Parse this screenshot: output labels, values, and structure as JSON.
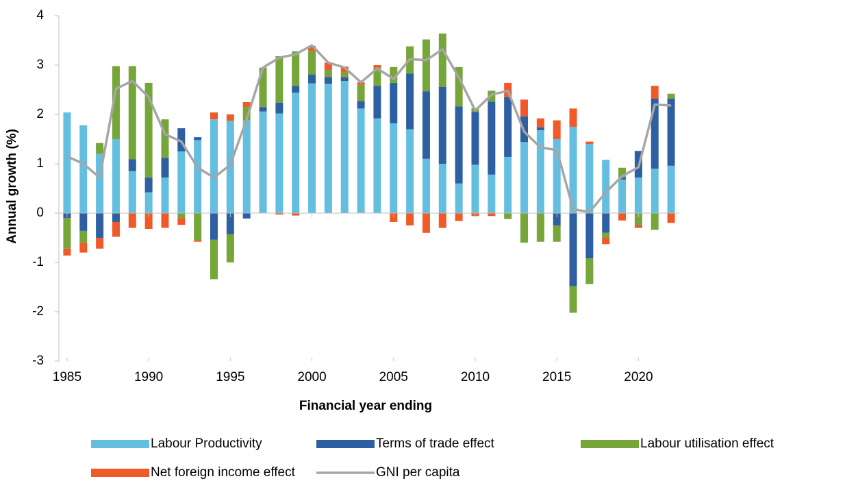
{
  "chart_data": {
    "type": "bar",
    "x_label": "Financial year ending",
    "y_label": "Annual growth (%)",
    "x": [
      1985,
      1986,
      1987,
      1988,
      1989,
      1990,
      1991,
      1992,
      1993,
      1994,
      1995,
      1996,
      1997,
      1998,
      1999,
      2000,
      2001,
      2002,
      2003,
      2004,
      2005,
      2006,
      2007,
      2008,
      2009,
      2010,
      2011,
      2012,
      2013,
      2014,
      2015,
      2016,
      2017,
      2018,
      2019,
      2020,
      2021,
      2022
    ],
    "xlim": [
      1984.5,
      2022.5
    ],
    "xticks": [
      1985,
      1990,
      1995,
      2000,
      2005,
      2010,
      2015,
      2020
    ],
    "ylim": [
      -3,
      4
    ],
    "yticks": [
      -3,
      -2,
      -1,
      0,
      1,
      2,
      3,
      4
    ],
    "series": [
      {
        "name": "Labour Productivity",
        "type": "bar",
        "color": "#63bee0",
        "values": [
          2.04,
          1.78,
          1.2,
          1.5,
          0.85,
          0.42,
          0.72,
          1.25,
          1.48,
          1.9,
          1.87,
          1.88,
          2.06,
          2.02,
          2.44,
          2.63,
          2.62,
          2.68,
          2.12,
          1.92,
          1.82,
          1.7,
          1.1,
          1.0,
          0.6,
          0.98,
          0.78,
          1.14,
          1.44,
          1.68,
          1.5,
          1.75,
          1.4,
          1.08,
          0.68,
          0.72,
          0.9,
          0.96
        ]
      },
      {
        "name": "Terms of trade effect",
        "type": "bar",
        "color": "#2d5fa2",
        "values": [
          -0.1,
          -0.36,
          -0.5,
          -0.18,
          0.24,
          0.3,
          0.4,
          0.47,
          0.06,
          -0.54,
          -0.43,
          -0.11,
          0.09,
          0.22,
          0.14,
          0.18,
          0.14,
          0.07,
          0.15,
          0.66,
          0.82,
          1.13,
          1.37,
          1.56,
          1.56,
          1.07,
          1.48,
          1.21,
          0.52,
          0.06,
          -0.25,
          -1.48,
          -0.92,
          -0.4,
          0.04,
          0.54,
          1.42,
          1.36
        ]
      },
      {
        "name": "Labour utilisation effect",
        "type": "bar",
        "color": "#76a53a",
        "values": [
          -0.62,
          -0.24,
          0.22,
          1.48,
          1.89,
          1.92,
          0.78,
          -0.1,
          -0.55,
          -0.8,
          -0.57,
          0.27,
          0.8,
          0.94,
          0.7,
          0.48,
          0.14,
          0.1,
          0.33,
          0.37,
          0.32,
          0.55,
          1.05,
          1.08,
          0.8,
          0.08,
          0.22,
          -0.12,
          -0.6,
          -0.58,
          -0.33,
          -0.54,
          -0.52,
          -0.1,
          0.2,
          -0.25,
          -0.34,
          0.1
        ]
      },
      {
        "name": "Net foreign income effect",
        "type": "bar",
        "color": "#f05a28",
        "values": [
          -0.14,
          -0.2,
          -0.22,
          -0.3,
          -0.3,
          -0.32,
          -0.3,
          -0.14,
          -0.03,
          0.14,
          0.13,
          0.1,
          0,
          -0.03,
          -0.05,
          0.1,
          0.15,
          0.12,
          0.05,
          0.05,
          -0.18,
          -0.25,
          -0.4,
          -0.3,
          -0.16,
          -0.06,
          -0.06,
          0.29,
          0.34,
          0.18,
          0.38,
          0.37,
          0.05,
          -0.13,
          -0.15,
          -0.05,
          0.26,
          -0.2
        ]
      },
      {
        "name": "GNI per capita",
        "type": "line",
        "color": "#a6a6a6",
        "values": [
          1.15,
          1.0,
          0.72,
          2.52,
          2.68,
          2.35,
          1.6,
          1.45,
          0.92,
          0.72,
          0.98,
          1.9,
          2.95,
          3.15,
          3.22,
          3.4,
          3.05,
          2.95,
          2.65,
          2.93,
          2.72,
          3.12,
          3.1,
          3.32,
          2.75,
          2.08,
          2.4,
          2.48,
          1.65,
          1.33,
          1.28,
          0.08,
          0.02,
          0.42,
          0.75,
          0.93,
          2.2,
          2.18
        ]
      }
    ]
  }
}
